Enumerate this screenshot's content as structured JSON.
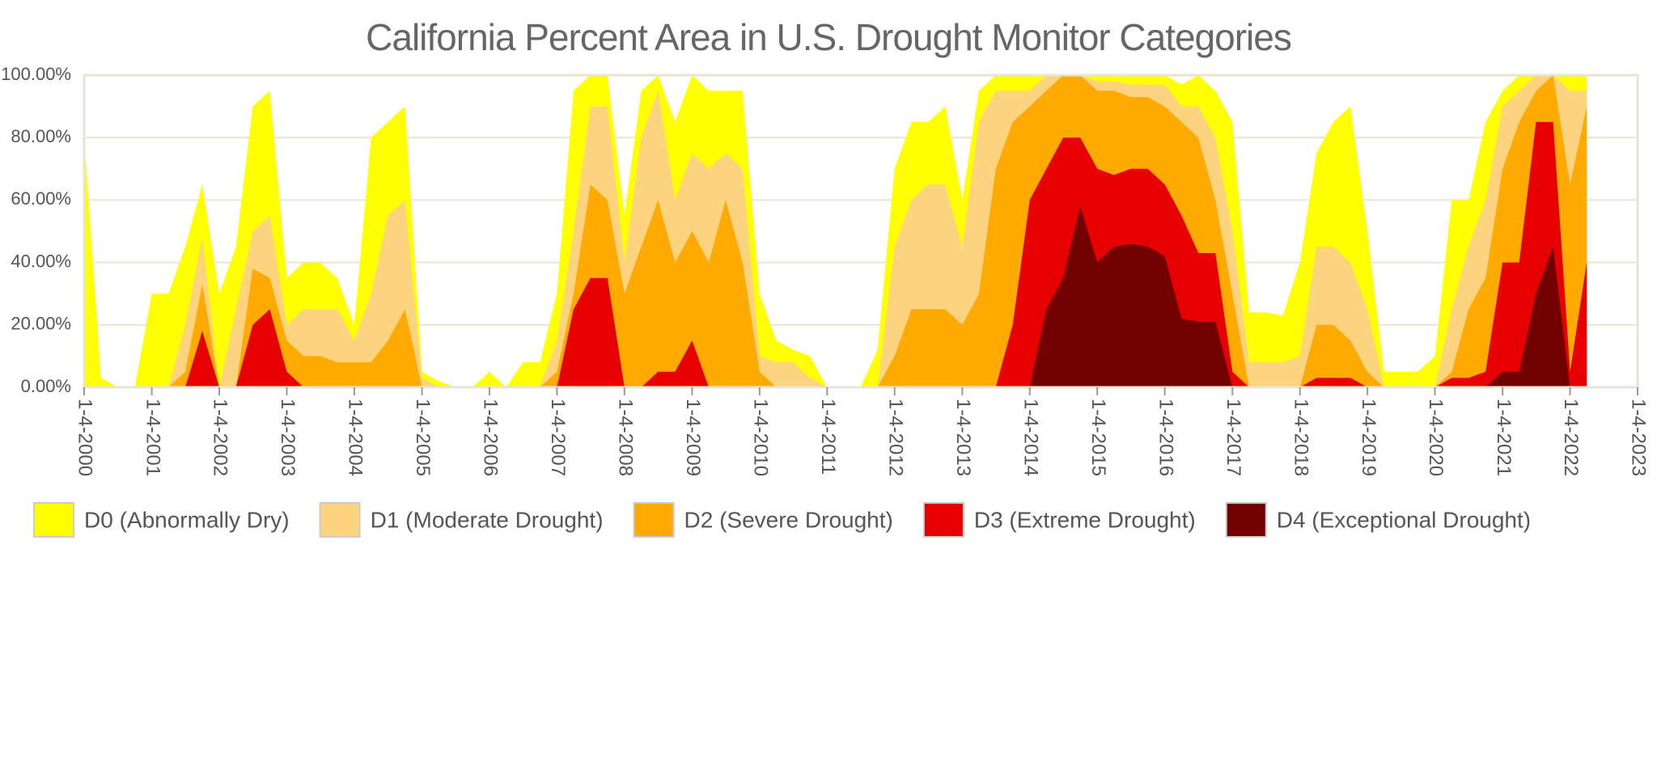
{
  "chart_data": {
    "type": "area",
    "title": "California Percent Area in U.S. Drought Monitor Categories",
    "x": [
      "2000-01-04",
      "2000-04-04",
      "2000-07-04",
      "2000-10-04",
      "2001-01-04",
      "2001-04-04",
      "2001-07-04",
      "2001-10-04",
      "2002-01-04",
      "2002-04-04",
      "2002-07-04",
      "2002-10-04",
      "2003-01-04",
      "2003-04-04",
      "2003-07-04",
      "2003-10-04",
      "2004-01-04",
      "2004-04-04",
      "2004-07-04",
      "2004-10-04",
      "2005-01-04",
      "2005-04-04",
      "2005-07-04",
      "2005-10-04",
      "2006-01-04",
      "2006-04-04",
      "2006-07-04",
      "2006-10-04",
      "2007-01-04",
      "2007-04-04",
      "2007-07-04",
      "2007-10-04",
      "2008-01-04",
      "2008-04-04",
      "2008-07-04",
      "2008-10-04",
      "2009-01-04",
      "2009-04-04",
      "2009-07-04",
      "2009-10-04",
      "2010-01-04",
      "2010-04-04",
      "2010-07-04",
      "2010-10-04",
      "2011-01-04",
      "2011-04-04",
      "2011-07-04",
      "2011-10-04",
      "2012-01-04",
      "2012-04-04",
      "2012-07-04",
      "2012-10-04",
      "2013-01-04",
      "2013-04-04",
      "2013-07-04",
      "2013-10-04",
      "2014-01-04",
      "2014-04-04",
      "2014-07-04",
      "2014-10-04",
      "2015-01-04",
      "2015-04-04",
      "2015-07-04",
      "2015-10-04",
      "2016-01-04",
      "2016-04-04",
      "2016-07-04",
      "2016-10-04",
      "2017-01-04",
      "2017-04-04",
      "2017-07-04",
      "2017-10-04",
      "2018-01-04",
      "2018-04-04",
      "2018-07-04",
      "2018-10-04",
      "2019-01-04",
      "2019-04-04",
      "2019-07-04",
      "2019-10-04",
      "2020-01-04",
      "2020-04-04",
      "2020-07-04",
      "2020-10-04",
      "2021-01-04",
      "2021-04-04",
      "2021-07-04",
      "2021-10-04",
      "2022-01-04",
      "2022-04-04"
    ],
    "series": [
      {
        "name": "D0 (Abnormally Dry)",
        "color": "#ffff00",
        "values": [
          80,
          3,
          0,
          0,
          30,
          30,
          45,
          65,
          30,
          45,
          90,
          95,
          35,
          40,
          40,
          35,
          20,
          80,
          85,
          90,
          5,
          2,
          0,
          0,
          5,
          0,
          8,
          8,
          30,
          95,
          100,
          100,
          55,
          95,
          100,
          85,
          100,
          95,
          95,
          95,
          30,
          15,
          12,
          10,
          0,
          0,
          0,
          12,
          70,
          85,
          85,
          90,
          60,
          95,
          100,
          100,
          100,
          100,
          100,
          100,
          100,
          100,
          100,
          100,
          100,
          97,
          100,
          95,
          85,
          24,
          24,
          23,
          40,
          75,
          85,
          90,
          50,
          5,
          5,
          5,
          10,
          60,
          60,
          85,
          95,
          100,
          100,
          100,
          100,
          100
        ]
      },
      {
        "name": "D1 (Moderate Drought)",
        "color": "#fcd37f",
        "values": [
          0,
          0,
          0,
          0,
          0,
          0,
          20,
          48,
          0,
          25,
          50,
          55,
          20,
          25,
          25,
          25,
          15,
          30,
          55,
          60,
          3,
          0,
          0,
          0,
          0,
          0,
          0,
          0,
          15,
          50,
          90,
          90,
          40,
          80,
          95,
          60,
          75,
          70,
          75,
          70,
          10,
          8,
          8,
          3,
          0,
          0,
          0,
          0,
          45,
          60,
          65,
          65,
          45,
          85,
          95,
          95,
          95,
          100,
          100,
          100,
          98,
          98,
          97,
          97,
          97,
          90,
          90,
          80,
          50,
          8,
          8,
          8,
          10,
          45,
          45,
          40,
          25,
          0,
          0,
          0,
          0,
          25,
          45,
          60,
          90,
          95,
          100,
          100,
          95,
          95
        ]
      },
      {
        "name": "D2 (Severe Drought)",
        "color": "#ffaa00",
        "values": [
          0,
          0,
          0,
          0,
          0,
          0,
          5,
          33,
          0,
          0,
          38,
          35,
          15,
          10,
          10,
          8,
          8,
          8,
          15,
          25,
          0,
          0,
          0,
          0,
          0,
          0,
          0,
          0,
          5,
          30,
          65,
          60,
          30,
          45,
          60,
          40,
          50,
          40,
          60,
          40,
          5,
          0,
          0,
          0,
          0,
          0,
          0,
          0,
          10,
          25,
          25,
          25,
          20,
          30,
          70,
          85,
          90,
          95,
          100,
          100,
          95,
          95,
          93,
          93,
          90,
          85,
          80,
          60,
          30,
          0,
          0,
          0,
          0,
          20,
          20,
          15,
          5,
          0,
          0,
          0,
          0,
          5,
          25,
          35,
          70,
          85,
          95,
          100,
          65,
          90
        ]
      },
      {
        "name": "D3 (Extreme Drought)",
        "color": "#e60000",
        "values": [
          0,
          0,
          0,
          0,
          0,
          0,
          0,
          18,
          0,
          0,
          20,
          25,
          5,
          0,
          0,
          0,
          0,
          0,
          0,
          0,
          0,
          0,
          0,
          0,
          0,
          0,
          0,
          0,
          0,
          25,
          35,
          35,
          0,
          0,
          5,
          5,
          15,
          0,
          0,
          0,
          0,
          0,
          0,
          0,
          0,
          0,
          0,
          0,
          0,
          0,
          0,
          0,
          0,
          0,
          0,
          20,
          60,
          70,
          80,
          80,
          70,
          68,
          70,
          70,
          65,
          55,
          43,
          43,
          5,
          0,
          0,
          0,
          0,
          3,
          3,
          3,
          0,
          0,
          0,
          0,
          0,
          3,
          3,
          5,
          40,
          40,
          85,
          85,
          5,
          40
        ]
      },
      {
        "name": "D4 (Exceptional Drought)",
        "color": "#730000",
        "values": [
          0,
          0,
          0,
          0,
          0,
          0,
          0,
          0,
          0,
          0,
          0,
          0,
          0,
          0,
          0,
          0,
          0,
          0,
          0,
          0,
          0,
          0,
          0,
          0,
          0,
          0,
          0,
          0,
          0,
          0,
          0,
          0,
          0,
          0,
          0,
          0,
          0,
          0,
          0,
          0,
          0,
          0,
          0,
          0,
          0,
          0,
          0,
          0,
          0,
          0,
          0,
          0,
          0,
          0,
          0,
          0,
          0,
          25,
          35,
          58,
          40,
          45,
          46,
          45,
          42,
          22,
          21,
          21,
          0,
          0,
          0,
          0,
          0,
          0,
          0,
          0,
          0,
          0,
          0,
          0,
          0,
          0,
          0,
          0,
          5,
          5,
          30,
          45,
          0,
          0
        ]
      }
    ],
    "xlim": [
      "2000-01-04",
      "2023-01-04"
    ],
    "xticks": [
      {
        "value": "2000-01-04",
        "label": "1-4-2000"
      },
      {
        "value": "2001-01-04",
        "label": "1-4-2001"
      },
      {
        "value": "2002-01-04",
        "label": "1-4-2002"
      },
      {
        "value": "2003-01-04",
        "label": "1-4-2003"
      },
      {
        "value": "2004-01-04",
        "label": "1-4-2004"
      },
      {
        "value": "2005-01-04",
        "label": "1-4-2005"
      },
      {
        "value": "2006-01-04",
        "label": "1-4-2006"
      },
      {
        "value": "2007-01-04",
        "label": "1-4-2007"
      },
      {
        "value": "2008-01-04",
        "label": "1-4-2008"
      },
      {
        "value": "2009-01-04",
        "label": "1-4-2009"
      },
      {
        "value": "2010-01-04",
        "label": "1-4-2010"
      },
      {
        "value": "2011-01-04",
        "label": "1-4-2011"
      },
      {
        "value": "2012-01-04",
        "label": "1-4-2012"
      },
      {
        "value": "2013-01-04",
        "label": "1-4-2013"
      },
      {
        "value": "2014-01-04",
        "label": "1-4-2014"
      },
      {
        "value": "2015-01-04",
        "label": "1-4-2015"
      },
      {
        "value": "2016-01-04",
        "label": "1-4-2016"
      },
      {
        "value": "2017-01-04",
        "label": "1-4-2017"
      },
      {
        "value": "2018-01-04",
        "label": "1-4-2018"
      },
      {
        "value": "2019-01-04",
        "label": "1-4-2019"
      },
      {
        "value": "2020-01-04",
        "label": "1-4-2020"
      },
      {
        "value": "2021-01-04",
        "label": "1-4-2021"
      },
      {
        "value": "2022-01-04",
        "label": "1-4-2022"
      },
      {
        "value": "2023-01-04",
        "label": "1-4-2023"
      }
    ],
    "ylim": [
      0,
      100
    ],
    "yticks": [
      {
        "value": 0,
        "label": "0.00%"
      },
      {
        "value": 20,
        "label": "20.00%"
      },
      {
        "value": 40,
        "label": "40.00%"
      },
      {
        "value": 60,
        "label": "60.00%"
      },
      {
        "value": 80,
        "label": "80.00%"
      },
      {
        "value": 100,
        "label": "100.00%"
      }
    ],
    "grid": true,
    "legend": "bottom-left"
  }
}
